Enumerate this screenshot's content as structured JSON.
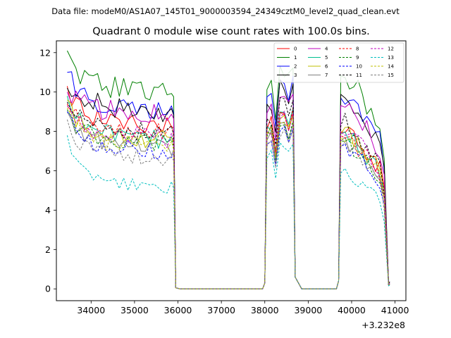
{
  "chart_data": {
    "type": "line",
    "suptitle": "Data file: modeM0/AS1A07_145T01_9000003594_24349cztM0_level2_quad_clean.evt",
    "title": "Quadrant 0 module wise count rates with 100.0s bins.",
    "xlabel": "",
    "ylabel": "",
    "x_offset_label": "+3.232e8",
    "xlim": [
      33200,
      41250
    ],
    "ylim": [
      -0.6,
      12.6
    ],
    "x_ticks": [
      34000,
      35000,
      36000,
      37000,
      38000,
      39000,
      40000,
      41000
    ],
    "y_ticks": [
      0,
      2,
      4,
      6,
      8,
      10,
      12
    ],
    "x_tick_labels": [
      "34000",
      "35000",
      "36000",
      "37000",
      "38000",
      "39000",
      "40000",
      "41000"
    ],
    "y_tick_labels": [
      "0",
      "2",
      "4",
      "6",
      "8",
      "10",
      "12"
    ],
    "legend": {
      "placement": "top-right",
      "columns": 4
    },
    "segments": [
      {
        "start": 33450,
        "end": 35850,
        "step": 100
      },
      {
        "start": 38050,
        "end": 38650,
        "step": 100
      },
      {
        "start": 39750,
        "end": 40850,
        "step": 100
      }
    ],
    "gap_points": [
      [
        35900,
        8.0
      ],
      [
        35950,
        0.05
      ],
      [
        36050,
        0.0
      ],
      [
        37950,
        0.0
      ],
      [
        38000,
        0.3
      ],
      [
        38700,
        0.6
      ],
      [
        38850,
        0.0
      ],
      [
        39650,
        0.0
      ],
      [
        39700,
        0.4
      ]
    ],
    "series": [
      {
        "name": "0",
        "color": "#ff0000",
        "dash": false,
        "base": 8.8,
        "start": 10.3,
        "seg2_peak": 8.8,
        "seg3_peak": 8.4,
        "end": 5.2,
        "last": 0.2
      },
      {
        "name": "1",
        "color": "#008000",
        "dash": false,
        "base": 10.5,
        "start": 12.1,
        "seg2_peak": 11.0,
        "seg3_peak": 11.4,
        "end": 6.6,
        "last": 0.3
      },
      {
        "name": "2",
        "color": "#0000ff",
        "dash": false,
        "base": 9.6,
        "start": 11.0,
        "seg2_peak": 10.6,
        "seg3_peak": 10.2,
        "end": 6.0,
        "last": 0.3
      },
      {
        "name": "3",
        "color": "#000000",
        "dash": false,
        "base": 9.5,
        "start": 10.2,
        "seg2_peak": 10.2,
        "seg3_peak": 10.4,
        "end": 6.2,
        "last": 0.3
      },
      {
        "name": "4",
        "color": "#bf00bf",
        "dash": false,
        "base": 9.3,
        "start": 10.0,
        "seg2_peak": 9.7,
        "seg3_peak": 9.8,
        "end": 5.8,
        "last": 0.25
      },
      {
        "name": "5",
        "color": "#00bf8f",
        "dash": false,
        "base": 8.0,
        "start": 9.8,
        "seg2_peak": 9.0,
        "seg3_peak": 8.3,
        "end": 5.0,
        "last": 0.2
      },
      {
        "name": "6",
        "color": "#bfbf00",
        "dash": false,
        "base": 8.0,
        "start": 9.6,
        "seg2_peak": 8.6,
        "seg3_peak": 8.3,
        "end": 5.0,
        "last": 0.2
      },
      {
        "name": "7",
        "color": "#808080",
        "dash": false,
        "base": 7.6,
        "start": 9.0,
        "seg2_peak": 8.2,
        "seg3_peak": 7.9,
        "end": 4.6,
        "last": 0.2
      },
      {
        "name": "8",
        "color": "#ff0000",
        "dash": true,
        "base": 8.4,
        "start": 9.4,
        "seg2_peak": 9.0,
        "seg3_peak": 8.2,
        "end": 4.8,
        "last": 0.2
      },
      {
        "name": "9",
        "color": "#008000",
        "dash": true,
        "base": 7.8,
        "start": 9.1,
        "seg2_peak": 8.4,
        "seg3_peak": 7.9,
        "end": 4.6,
        "last": 0.2
      },
      {
        "name": "10",
        "color": "#0000ff",
        "dash": true,
        "base": 7.4,
        "start": 9.0,
        "seg2_peak": 8.0,
        "seg3_peak": 7.6,
        "end": 4.3,
        "last": 0.2
      },
      {
        "name": "11",
        "color": "#000000",
        "dash": true,
        "base": 8.4,
        "start": 9.5,
        "seg2_peak": 9.4,
        "seg3_peak": 8.7,
        "end": 4.8,
        "last": 0.2
      },
      {
        "name": "12",
        "color": "#bf00bf",
        "dash": true,
        "base": 8.1,
        "start": 9.3,
        "seg2_peak": 8.7,
        "seg3_peak": 8.4,
        "end": 4.6,
        "last": 0.2
      },
      {
        "name": "13",
        "color": "#00bfbf",
        "dash": true,
        "base": 5.5,
        "start": 7.8,
        "seg2_peak": 7.2,
        "seg3_peak": 6.2,
        "end": 3.4,
        "last": 0.15
      },
      {
        "name": "14",
        "color": "#bfbf00",
        "dash": true,
        "base": 7.6,
        "start": 9.2,
        "seg2_peak": 8.6,
        "seg3_peak": 8.1,
        "end": 4.5,
        "last": 0.2
      },
      {
        "name": "15",
        "color": "#808080",
        "dash": true,
        "base": 7.0,
        "start": 8.6,
        "seg2_peak": 7.9,
        "seg3_peak": 7.6,
        "end": 4.0,
        "last": 0.2
      }
    ]
  }
}
